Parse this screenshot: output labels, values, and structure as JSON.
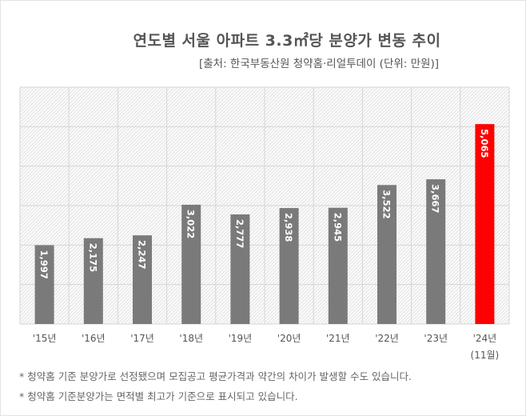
{
  "title": "연도별 서울 아파트 3.3㎡당 분양가 변동 추이",
  "subtitle": "[출처: 한국부동산원 청약홈·리얼투데이 (단위: 만원)]",
  "chart_data": {
    "type": "bar",
    "title": "연도별 서울 아파트 3.3㎡당 분양가 변동 추이",
    "categories": [
      "'15년",
      "'16년",
      "'17년",
      "'18년",
      "'19년",
      "'20년",
      "'21년",
      "'22년",
      "'23년",
      "'24년"
    ],
    "category_sublabels": [
      "",
      "",
      "",
      "",
      "",
      "",
      "",
      "",
      "",
      "(11월)"
    ],
    "values": [
      1997,
      2175,
      2247,
      3022,
      2777,
      2938,
      2945,
      3522,
      3667,
      5065
    ],
    "data_labels": [
      "1,997",
      "2,175",
      "2,247",
      "3,022",
      "2,777",
      "2,938",
      "2,945",
      "3,522",
      "3,667",
      "5,065"
    ],
    "ylim": [
      0,
      6000
    ],
    "grid": true,
    "colors": {
      "default": "#7a7a7a",
      "highlight": "#ff0000"
    },
    "highlight_index": 9
  },
  "notes": [
    "* 청약홈 기준 분양가로 선정됐으며 모집공고 평균가격과 약간의 차이가 발생할 수도 있습니다.",
    "* 청약홈 기준분양가는 면적별 최고가 기준으로 표시되고 있습니다."
  ]
}
